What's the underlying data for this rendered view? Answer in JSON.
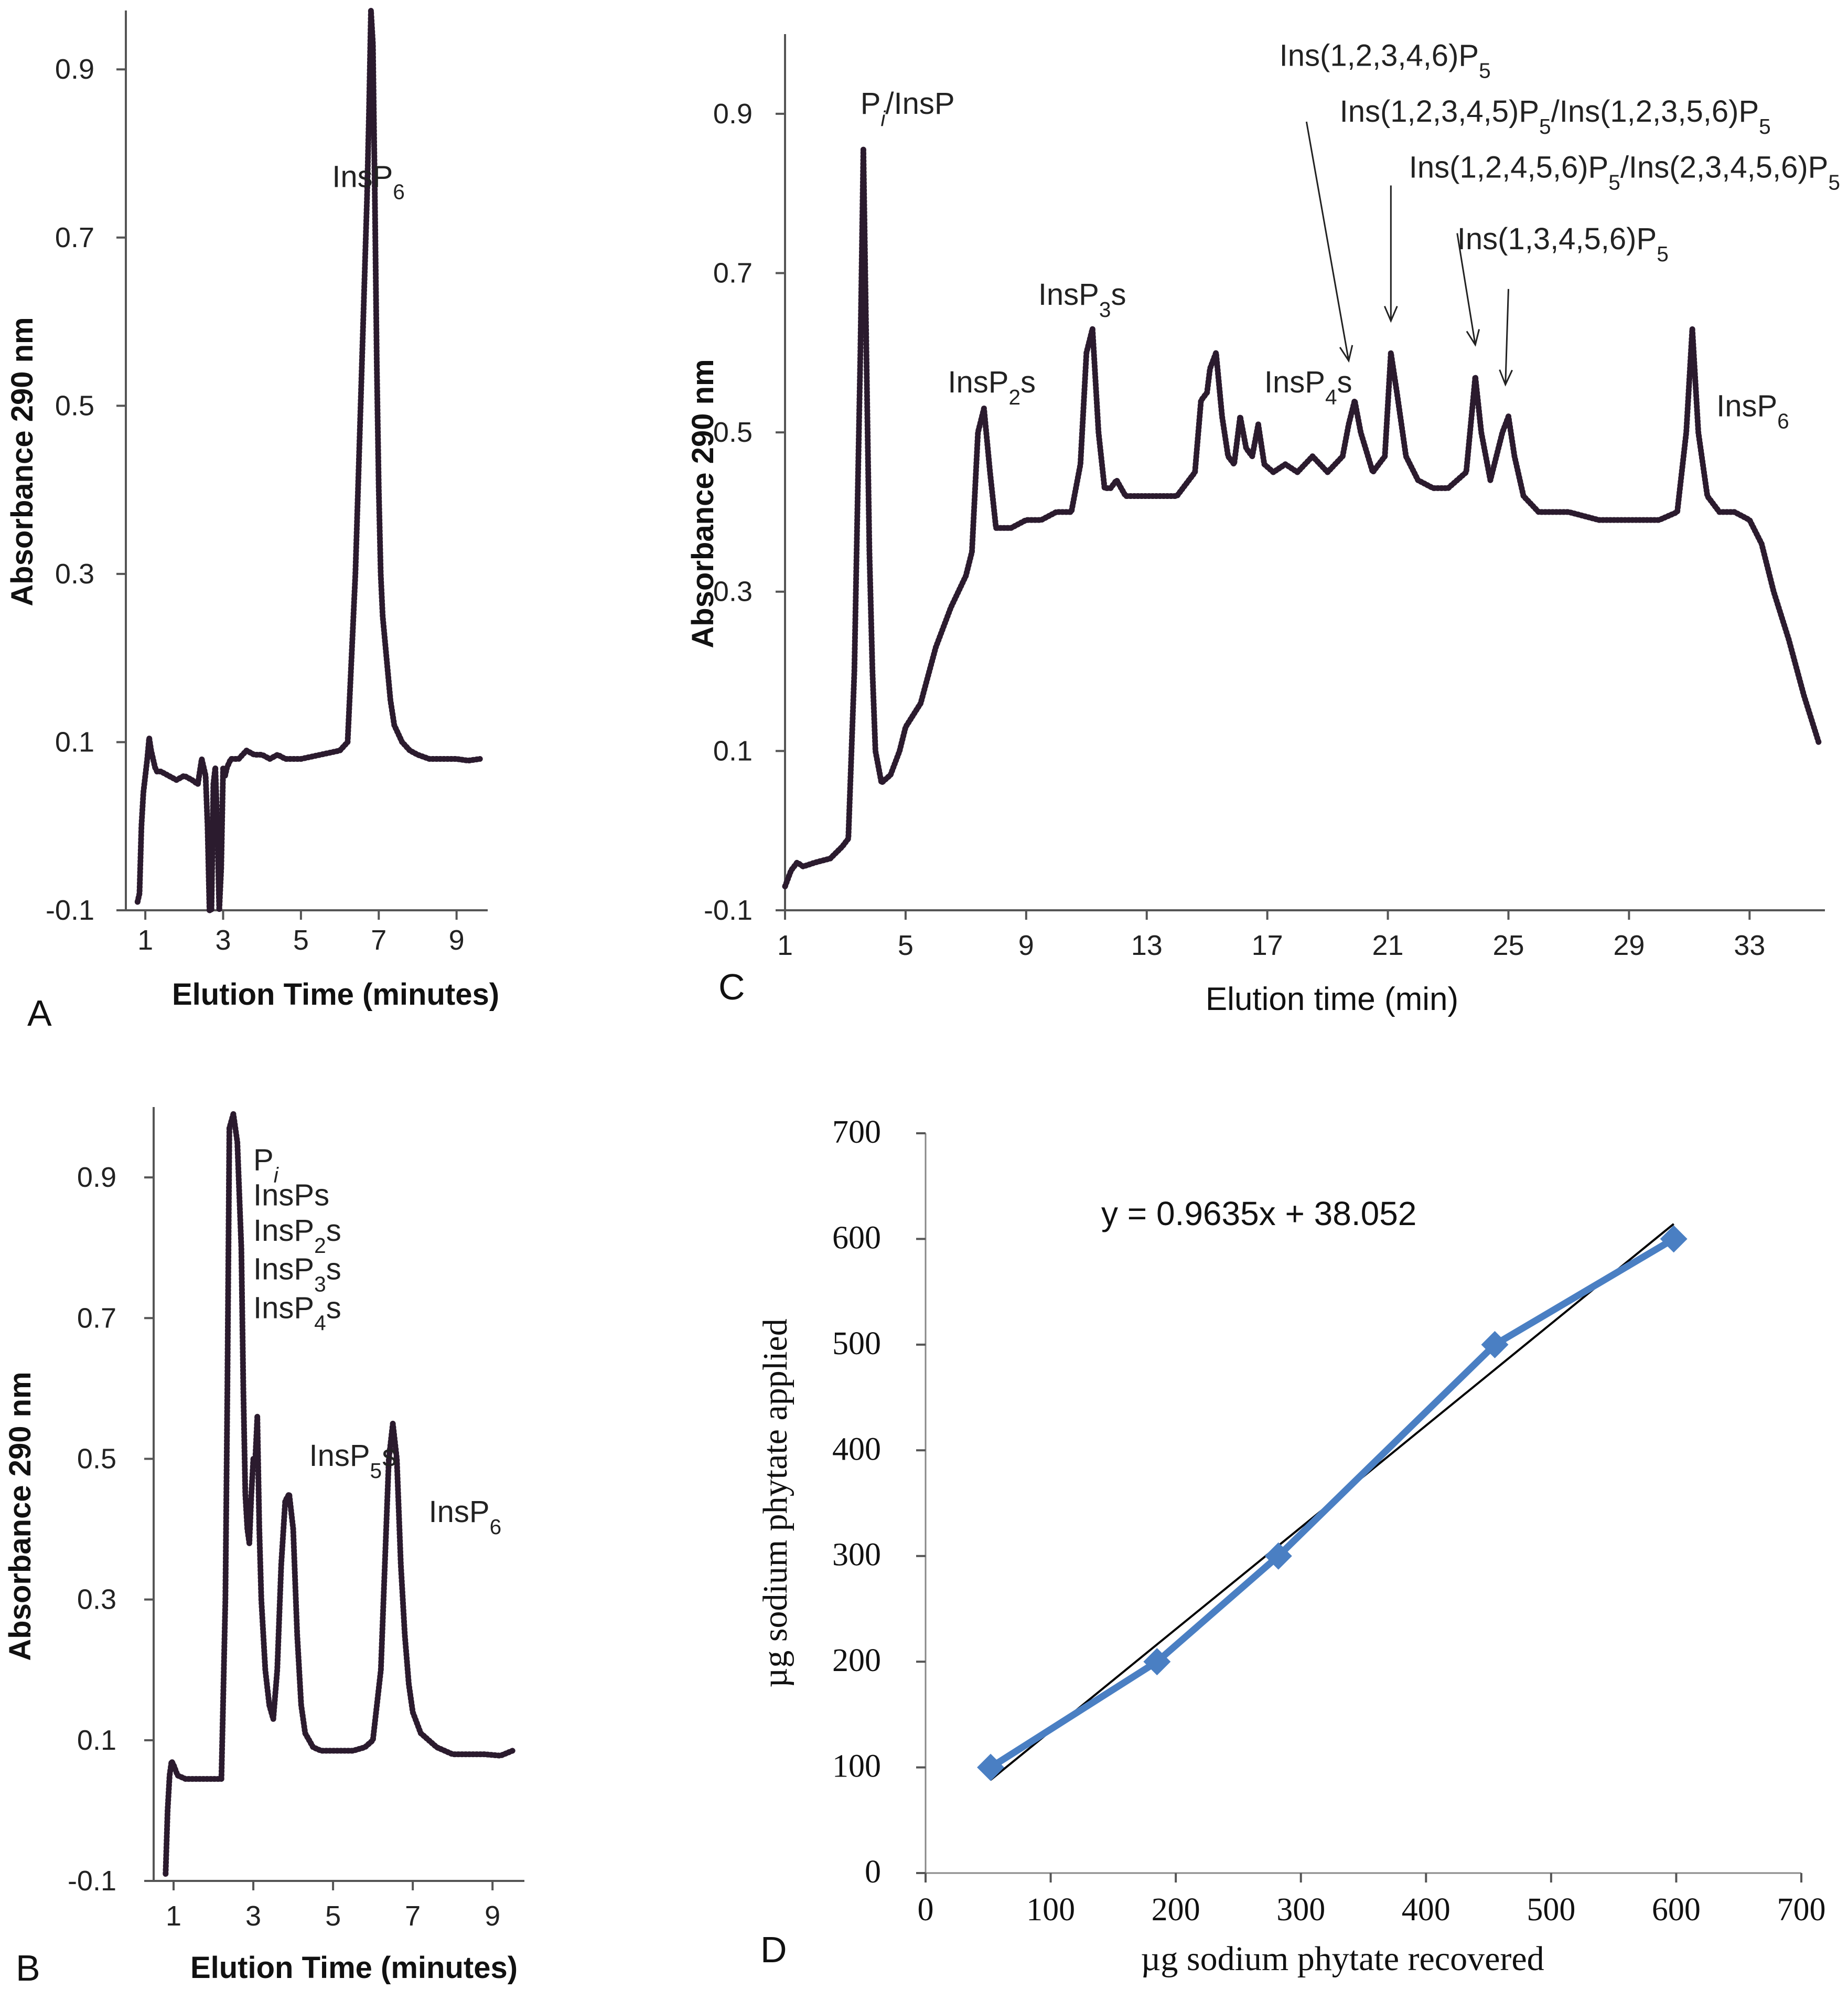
{
  "chart_data": [
    {
      "panel": "A",
      "type": "line",
      "xlabel": "Elution Time (minutes)",
      "ylabel": "Absorbance 290 nm",
      "xticks": [
        1,
        3,
        5,
        7,
        9
      ],
      "yticks": [
        -0.1,
        0.1,
        0.3,
        0.5,
        0.7,
        0.9
      ],
      "xlim": [
        0.5,
        9.8
      ],
      "ylim": [
        -0.1,
        0.97
      ],
      "annotations": [
        {
          "text": "InsP6",
          "x": 5.8,
          "y": 0.76
        }
      ],
      "x": [
        0.8,
        0.85,
        0.9,
        0.95,
        1.0,
        1.05,
        1.1,
        1.15,
        1.2,
        1.25,
        1.3,
        1.4,
        1.6,
        1.8,
        2.0,
        2.2,
        2.35,
        2.45,
        2.5,
        2.55,
        2.6,
        2.65,
        2.7,
        2.75,
        2.8,
        2.85,
        2.9,
        2.95,
        3.0,
        3.05,
        3.1,
        3.2,
        3.4,
        3.6,
        3.8,
        4.0,
        4.2,
        4.4,
        4.6,
        4.8,
        5.0,
        5.5,
        6.0,
        6.2,
        6.3,
        6.4,
        6.5,
        6.6,
        6.7,
        6.75,
        6.8,
        6.85,
        6.9,
        6.95,
        7.0,
        7.05,
        7.1,
        7.2,
        7.3,
        7.4,
        7.6,
        7.8,
        8.0,
        8.3,
        8.6,
        9.0,
        9.3,
        9.6
      ],
      "y": [
        -0.09,
        -0.08,
        0.0,
        0.04,
        0.06,
        0.08,
        0.105,
        0.09,
        0.08,
        0.07,
        0.065,
        0.065,
        0.06,
        0.055,
        0.06,
        0.055,
        0.05,
        0.08,
        0.07,
        0.06,
        0.0,
        -0.1,
        -0.1,
        0.05,
        0.07,
        0.0,
        -0.1,
        -0.05,
        0.07,
        0.06,
        0.07,
        0.08,
        0.08,
        0.09,
        0.085,
        0.085,
        0.08,
        0.085,
        0.08,
        0.08,
        0.08,
        0.085,
        0.09,
        0.1,
        0.2,
        0.3,
        0.45,
        0.6,
        0.75,
        0.85,
        0.97,
        0.93,
        0.75,
        0.55,
        0.4,
        0.3,
        0.25,
        0.2,
        0.15,
        0.12,
        0.1,
        0.09,
        0.085,
        0.08,
        0.08,
        0.08,
        0.078,
        0.08
      ]
    },
    {
      "panel": "B",
      "type": "line",
      "xlabel": "Elution Time (minutes)",
      "ylabel": "Absorbance 290 nm",
      "xticks": [
        1,
        3,
        5,
        7,
        9
      ],
      "yticks": [
        -0.1,
        0.1,
        0.3,
        0.5,
        0.7,
        0.9
      ],
      "xlim": [
        0.5,
        9.8
      ],
      "ylim": [
        -0.1,
        1.0
      ],
      "annotations": [
        {
          "text": "Pi",
          "x": 3.0,
          "y": 0.91
        },
        {
          "text": "InsPs",
          "x": 3.0,
          "y": 0.86
        },
        {
          "text": "InsP2s",
          "x": 3.0,
          "y": 0.81
        },
        {
          "text": "InsP3s",
          "x": 3.0,
          "y": 0.755
        },
        {
          "text": "InsP4s",
          "x": 3.0,
          "y": 0.7
        },
        {
          "text": "InsP5s",
          "x": 4.4,
          "y": 0.49
        },
        {
          "text": "InsP6",
          "x": 7.4,
          "y": 0.41
        }
      ],
      "x": [
        0.8,
        0.85,
        0.9,
        0.95,
        1.0,
        1.1,
        1.3,
        1.6,
        2.0,
        2.2,
        2.3,
        2.35,
        2.4,
        2.5,
        2.6,
        2.7,
        2.75,
        2.8,
        2.85,
        2.9,
        2.95,
        3.0,
        3.05,
        3.1,
        3.15,
        3.2,
        3.25,
        3.3,
        3.4,
        3.5,
        3.6,
        3.7,
        3.8,
        3.9,
        4.0,
        4.1,
        4.2,
        4.3,
        4.4,
        4.5,
        4.7,
        5.0,
        5.5,
        5.8,
        6.0,
        6.2,
        6.3,
        6.4,
        6.5,
        6.6,
        6.7,
        6.8,
        6.9,
        7.0,
        7.2,
        7.4,
        7.6,
        7.8,
        8.0,
        8.4,
        8.8,
        9.2,
        9.5
      ],
      "y": [
        -0.09,
        0.0,
        0.05,
        0.07,
        0.065,
        0.05,
        0.045,
        0.045,
        0.045,
        0.045,
        0.3,
        0.6,
        0.97,
        0.99,
        0.95,
        0.8,
        0.6,
        0.45,
        0.4,
        0.38,
        0.45,
        0.5,
        0.5,
        0.56,
        0.4,
        0.3,
        0.25,
        0.2,
        0.15,
        0.13,
        0.2,
        0.35,
        0.44,
        0.45,
        0.4,
        0.25,
        0.15,
        0.11,
        0.1,
        0.09,
        0.085,
        0.085,
        0.085,
        0.09,
        0.1,
        0.2,
        0.35,
        0.5,
        0.55,
        0.5,
        0.35,
        0.25,
        0.18,
        0.14,
        0.11,
        0.1,
        0.09,
        0.085,
        0.08,
        0.08,
        0.08,
        0.078,
        0.085
      ]
    },
    {
      "panel": "C",
      "type": "line",
      "xlabel": "Elution time (min)",
      "ylabel": "Absorbance 290 nm",
      "xticks": [
        1,
        5,
        9,
        13,
        17,
        21,
        25,
        29,
        33
      ],
      "yticks": [
        -0.1,
        0.1,
        0.3,
        0.5,
        0.7,
        0.9
      ],
      "xlim": [
        1,
        35.5
      ],
      "ylim": [
        -0.1,
        1.0
      ],
      "annotations": [
        {
          "text": "Pi/InsP",
          "x": 3.5,
          "y": 0.9
        },
        {
          "text": "InsP2s",
          "x": 6.4,
          "y": 0.55
        },
        {
          "text": "InsP3s",
          "x": 9.4,
          "y": 0.66
        },
        {
          "text": "InsP4s",
          "x": 16.9,
          "y": 0.55
        },
        {
          "text": "Ins(1,2,3,4,6)P5",
          "x": 17.4,
          "y": 0.96
        },
        {
          "text": "Ins(1,2,3,4,5)P5/Ins(1,2,3,5,6)P5",
          "x": 19.4,
          "y": 0.89
        },
        {
          "text": "Ins(1,2,4,5,6)P5/Ins(2,3,4,5,6)P5",
          "x": 21.7,
          "y": 0.82
        },
        {
          "text": "Ins(1,3,4,5,6)P5",
          "x": 23.3,
          "y": 0.73
        },
        {
          "text": "InsP6",
          "x": 31.9,
          "y": 0.52
        }
      ],
      "arrows": [
        {
          "from": [
            18.3,
            0.89
          ],
          "to": [
            19.7,
            0.59
          ]
        },
        {
          "from": [
            21.1,
            0.81
          ],
          "to": [
            21.1,
            0.64
          ]
        },
        {
          "from": [
            23.3,
            0.75
          ],
          "to": [
            23.9,
            0.61
          ]
        },
        {
          "from": [
            25.0,
            0.68
          ],
          "to": [
            24.9,
            0.56
          ]
        }
      ],
      "x": [
        1.0,
        1.2,
        1.4,
        1.6,
        2.0,
        2.5,
        2.9,
        3.1,
        3.3,
        3.5,
        3.6,
        3.7,
        3.8,
        3.9,
        4.0,
        4.2,
        4.5,
        4.8,
        5.0,
        5.5,
        6.0,
        6.5,
        7.0,
        7.2,
        7.4,
        7.6,
        7.8,
        8.0,
        8.5,
        9.0,
        9.5,
        10.0,
        10.5,
        10.8,
        11.0,
        11.2,
        11.4,
        11.6,
        11.8,
        12.0,
        12.3,
        12.6,
        13.0,
        14.0,
        14.6,
        14.8,
        15.0,
        15.1,
        15.3,
        15.5,
        15.7,
        15.9,
        16.1,
        16.3,
        16.5,
        16.7,
        16.9,
        17.2,
        17.6,
        18.0,
        18.5,
        19.0,
        19.5,
        19.7,
        19.9,
        20.1,
        20.5,
        20.9,
        21.1,
        21.3,
        21.6,
        22.0,
        22.5,
        23.0,
        23.6,
        23.9,
        24.1,
        24.4,
        24.8,
        25.0,
        25.2,
        25.5,
        26.0,
        27.0,
        28.0,
        29.0,
        30.0,
        30.6,
        30.9,
        31.1,
        31.3,
        31.6,
        32.0,
        32.5,
        33.0,
        33.4,
        33.8,
        34.3,
        34.8,
        35.3
      ],
      "y": [
        -0.07,
        -0.05,
        -0.04,
        -0.045,
        -0.04,
        -0.035,
        -0.02,
        -0.01,
        0.2,
        0.6,
        0.855,
        0.6,
        0.35,
        0.2,
        0.1,
        0.06,
        0.07,
        0.1,
        0.13,
        0.16,
        0.23,
        0.28,
        0.32,
        0.35,
        0.5,
        0.53,
        0.45,
        0.38,
        0.38,
        0.39,
        0.39,
        0.4,
        0.4,
        0.46,
        0.6,
        0.63,
        0.5,
        0.43,
        0.43,
        0.44,
        0.42,
        0.42,
        0.42,
        0.42,
        0.45,
        0.54,
        0.55,
        0.58,
        0.6,
        0.52,
        0.47,
        0.46,
        0.52,
        0.48,
        0.47,
        0.51,
        0.46,
        0.45,
        0.46,
        0.45,
        0.47,
        0.45,
        0.47,
        0.51,
        0.54,
        0.5,
        0.45,
        0.47,
        0.6,
        0.55,
        0.47,
        0.44,
        0.43,
        0.43,
        0.45,
        0.57,
        0.5,
        0.44,
        0.5,
        0.52,
        0.47,
        0.42,
        0.4,
        0.4,
        0.39,
        0.39,
        0.39,
        0.4,
        0.5,
        0.63,
        0.5,
        0.42,
        0.4,
        0.4,
        0.39,
        0.36,
        0.3,
        0.24,
        0.17,
        0.11
      ]
    },
    {
      "panel": "D",
      "type": "scatter",
      "xlabel": "µg sodium phytate recovered",
      "ylabel": "µg sodium phytate applied",
      "xticks": [
        0,
        100,
        200,
        300,
        400,
        500,
        600,
        700
      ],
      "yticks": [
        0,
        100,
        200,
        300,
        400,
        500,
        600,
        700
      ],
      "xlim": [
        0,
        700
      ],
      "ylim": [
        0,
        700
      ],
      "equation": "y = 0.9635x + 38.052",
      "series": [
        {
          "x": [
            52,
            185,
            282,
            455,
            598
          ],
          "y": [
            100,
            200,
            300,
            500,
            600
          ],
          "color": "#4a7fc3"
        }
      ],
      "trendline": {
        "slope": 0.9635,
        "intercept": 38.052,
        "x_range": [
          52,
          598
        ],
        "color": "#000000"
      }
    }
  ]
}
